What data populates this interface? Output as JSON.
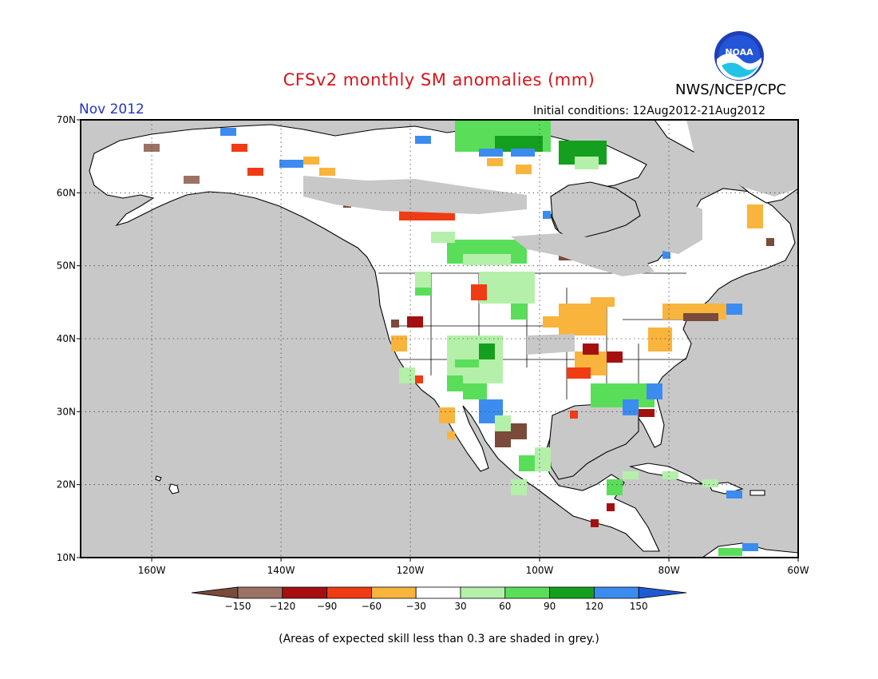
{
  "title": "CFSv2 monthly SM anomalies (mm)",
  "agency": "NWS/NCEP/CPC",
  "logo_text": "NOAA",
  "month": "Nov 2012",
  "initial_conditions": "Initial conditions: 12Aug2012-21Aug2012",
  "footnote": "(Areas of expected skill less than 0.3 are shaded in grey.)",
  "map": {
    "lon_range": [
      -171,
      -60
    ],
    "lat_range": [
      10,
      70
    ],
    "lat_ticks": [
      "70N",
      "60N",
      "50N",
      "40N",
      "30N",
      "20N",
      "10N"
    ],
    "lon_ticks": [
      "160W",
      "140W",
      "120W",
      "100W",
      "80W",
      "60W"
    ],
    "ocean_color": "#c8c8c8",
    "land_color": "#ffffff",
    "grid": "dotted"
  },
  "colorbar": {
    "labels": [
      "-150",
      "-120",
      "-90",
      "-60",
      "-30",
      "30",
      "60",
      "90",
      "120",
      "150"
    ],
    "colors": [
      "#7a4a3a",
      "#9c7264",
      "#a50f0f",
      "#f03c14",
      "#f8b43c",
      "#ffffff",
      "#b4f0aa",
      "#5ade5a",
      "#14a01e",
      "#3c8cf0",
      "#1e5ad2"
    ]
  },
  "colors": {
    "title": "#d8141a",
    "month": "#2233cc",
    "skill_grey": "#c8c8c8"
  }
}
